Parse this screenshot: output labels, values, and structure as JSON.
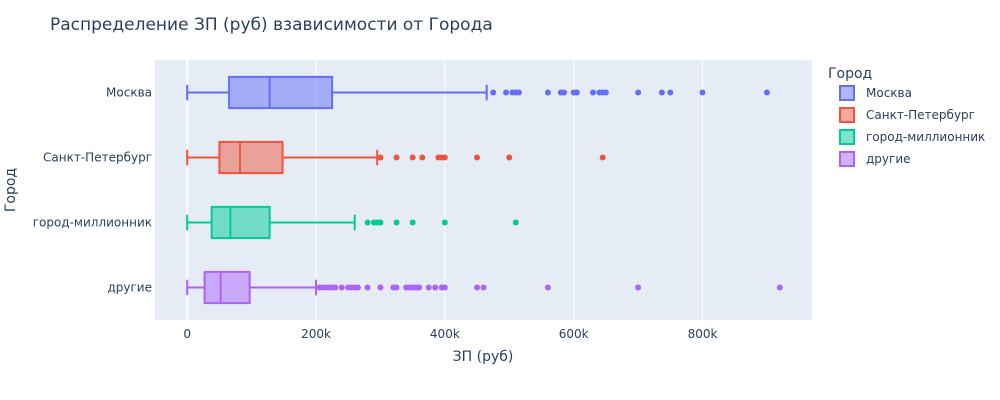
{
  "chart_data": {
    "type": "box",
    "orientation": "horizontal",
    "title": "Распределение ЗП (руб) взависимости от Города",
    "xlabel": "ЗП (руб)",
    "ylabel": "Город",
    "xlim": [
      -50000,
      970000
    ],
    "xticks": [
      0,
      200000,
      400000,
      600000,
      800000
    ],
    "xtick_labels": [
      "0",
      "200k",
      "400k",
      "600k",
      "800k"
    ],
    "legend_title": "Город",
    "legend_position": "right",
    "grid": true,
    "series": [
      {
        "name": "Москва",
        "color": "#636efa",
        "min": 0,
        "q1": 65000,
        "median": 128000,
        "q3": 225000,
        "max": 465000,
        "outliers": [
          475000,
          495000,
          505000,
          510000,
          515000,
          560000,
          580000,
          585000,
          600000,
          605000,
          630000,
          640000,
          645000,
          650000,
          700000,
          737000,
          750000,
          800000,
          900000
        ]
      },
      {
        "name": "Санкт-Петербург",
        "color": "#ef553b",
        "min": 0,
        "q1": 50000,
        "median": 82000,
        "q3": 148000,
        "max": 295000,
        "outliers": [
          300000,
          325000,
          350000,
          365000,
          390000,
          395000,
          400000,
          450000,
          500000,
          645000
        ]
      },
      {
        "name": "город-миллионник",
        "color": "#00cc96",
        "min": 0,
        "q1": 38000,
        "median": 67000,
        "q3": 128000,
        "max": 260000,
        "outliers": [
          280000,
          290000,
          295000,
          300000,
          325000,
          350000,
          400000,
          510000
        ]
      },
      {
        "name": "другие",
        "color": "#ab63fa",
        "min": 0,
        "q1": 27000,
        "median": 52000,
        "q3": 97000,
        "max": 200000,
        "outliers": [
          205000,
          210000,
          215000,
          220000,
          225000,
          230000,
          240000,
          250000,
          255000,
          260000,
          265000,
          280000,
          300000,
          320000,
          325000,
          340000,
          345000,
          350000,
          355000,
          360000,
          375000,
          385000,
          395000,
          400000,
          450000,
          460000,
          560000,
          700000,
          920000
        ]
      }
    ]
  }
}
